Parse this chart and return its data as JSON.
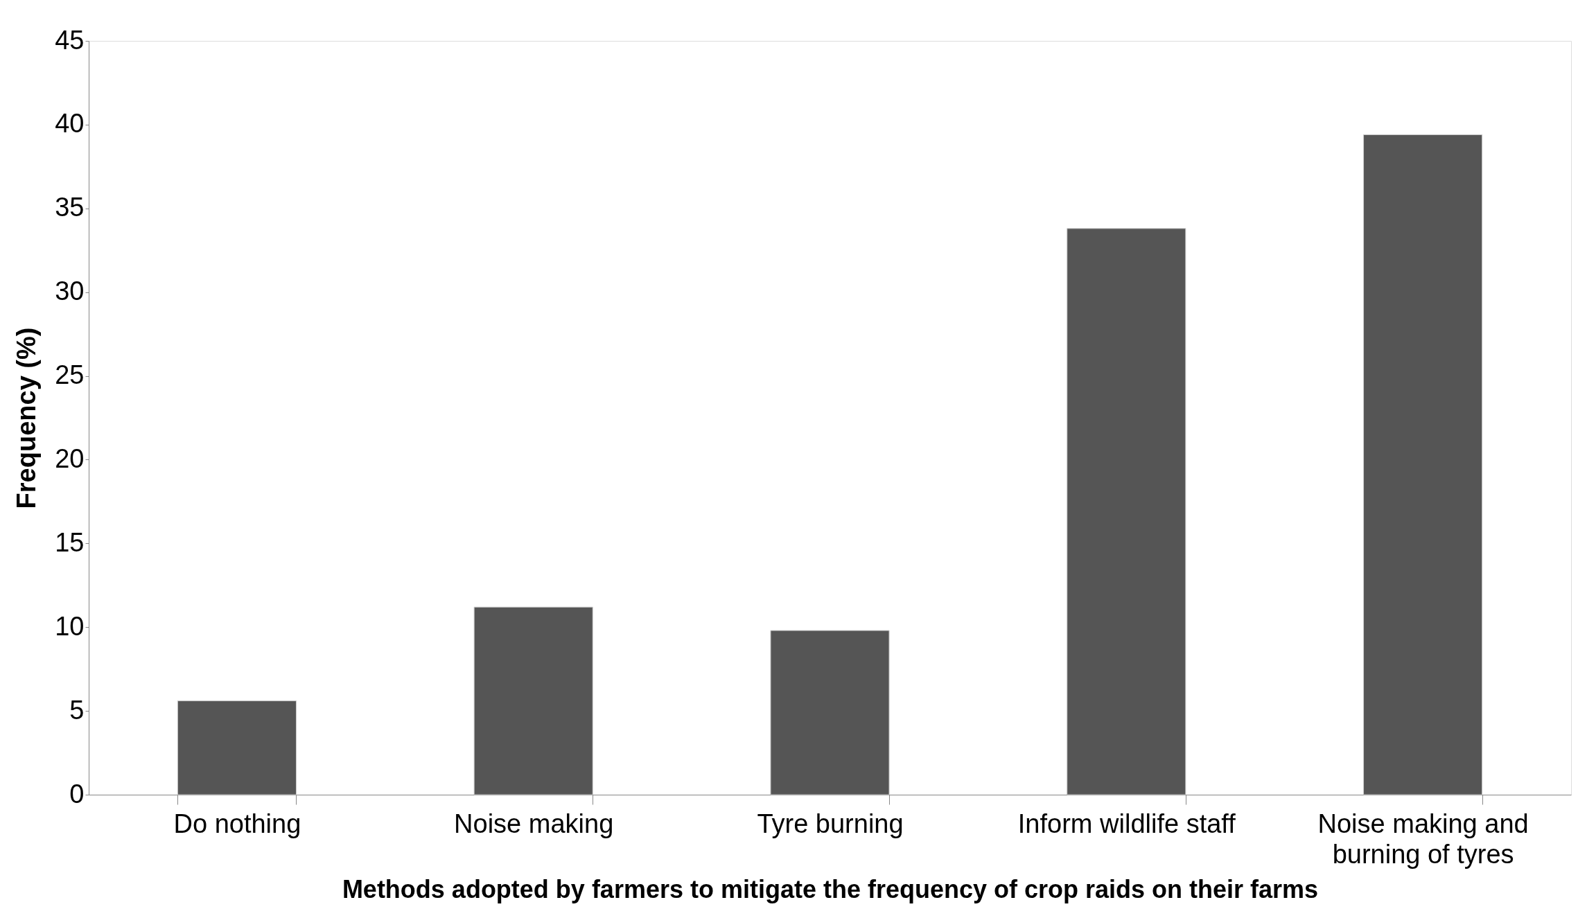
{
  "chart_data": {
    "type": "bar",
    "xlabel": "Methods adopted by farmers to mitigate the frequency of crop raids on their farms",
    "ylabel": "Frequency  (%)",
    "categories": [
      "Do nothing",
      "Noise making",
      "Tyre burning",
      "Inform wildlife staff",
      "Noise making and\nburning of tyres"
    ],
    "values": [
      5.6,
      11.2,
      9.8,
      33.8,
      39.4
    ],
    "color": "#555555",
    "ylim": [
      0,
      45
    ],
    "yticks": [
      0,
      5,
      10,
      15,
      20,
      25,
      30,
      35,
      40,
      45
    ],
    "grid": false
  }
}
